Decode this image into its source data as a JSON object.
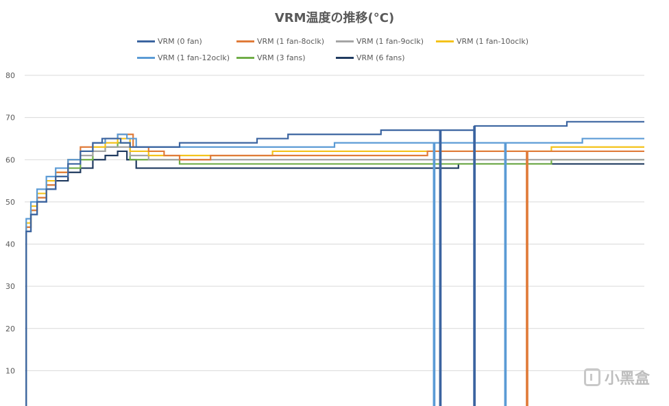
{
  "chart_data": {
    "type": "line",
    "title": "VRM温度の推移(°C)",
    "xlabel": "",
    "ylabel": "",
    "ylim": [
      0,
      80
    ],
    "yticks": [
      10,
      20,
      30,
      40,
      50,
      60,
      70,
      80
    ],
    "grid": true,
    "legend_position": "top",
    "series": [
      {
        "name": "VRM (0 fan)",
        "color": "#3b64a0",
        "points": [
          [
            0,
            0
          ],
          [
            0.5,
            43
          ],
          [
            2,
            47
          ],
          [
            4,
            50
          ],
          [
            7,
            53
          ],
          [
            10,
            56
          ],
          [
            14,
            59
          ],
          [
            18,
            62
          ],
          [
            22,
            64
          ],
          [
            25,
            65
          ],
          [
            29,
            65
          ],
          [
            31,
            64
          ],
          [
            34,
            63
          ],
          [
            40,
            63
          ],
          [
            45,
            63
          ],
          [
            50,
            64
          ],
          [
            56,
            64
          ],
          [
            62,
            64
          ],
          [
            66,
            64
          ],
          [
            70,
            64
          ],
          [
            75,
            65
          ],
          [
            80,
            65
          ],
          [
            85,
            66
          ],
          [
            90,
            66
          ],
          [
            95,
            66
          ],
          [
            100,
            66
          ],
          [
            105,
            66
          ],
          [
            110,
            66
          ],
          [
            115,
            67
          ],
          [
            120,
            67
          ],
          [
            125,
            67
          ],
          [
            130,
            67
          ],
          [
            135,
            67
          ],
          [
            140,
            67
          ],
          [
            145,
            68
          ],
          [
            150,
            68
          ],
          [
            155,
            68
          ],
          [
            160,
            68
          ],
          [
            165,
            68
          ],
          [
            170,
            68
          ],
          [
            175,
            69
          ],
          [
            180,
            69
          ],
          [
            185,
            69
          ],
          [
            190,
            69
          ],
          [
            195,
            69
          ],
          [
            200,
            69
          ]
        ],
        "dropouts": [
          [
            134,
            67
          ],
          [
            145,
            68
          ]
        ]
      },
      {
        "name": "VRM (1 fan-8oclk)",
        "color": "#e07b39",
        "points": [
          [
            0,
            0
          ],
          [
            0.5,
            44
          ],
          [
            2,
            48
          ],
          [
            4,
            51
          ],
          [
            7,
            54
          ],
          [
            10,
            57
          ],
          [
            14,
            60
          ],
          [
            18,
            63
          ],
          [
            22,
            64
          ],
          [
            26,
            65
          ],
          [
            30,
            66
          ],
          [
            33,
            66
          ],
          [
            35,
            63
          ],
          [
            40,
            62
          ],
          [
            45,
            61
          ],
          [
            50,
            60
          ],
          [
            55,
            60
          ],
          [
            60,
            61
          ],
          [
            70,
            61
          ],
          [
            80,
            61
          ],
          [
            90,
            61
          ],
          [
            100,
            61
          ],
          [
            110,
            61
          ],
          [
            120,
            61
          ],
          [
            130,
            62
          ],
          [
            140,
            62
          ],
          [
            150,
            62
          ],
          [
            160,
            62
          ],
          [
            170,
            62
          ],
          [
            180,
            62
          ],
          [
            190,
            62
          ],
          [
            200,
            62
          ]
        ],
        "dropouts": [
          [
            162,
            62
          ]
        ]
      },
      {
        "name": "VRM (1 fan-9oclk)",
        "color": "#a5a5a5",
        "points": [
          [
            0,
            0
          ],
          [
            0.5,
            44
          ],
          [
            2,
            48
          ],
          [
            4,
            51
          ],
          [
            7,
            54
          ],
          [
            10,
            56
          ],
          [
            14,
            59
          ],
          [
            18,
            61
          ],
          [
            22,
            62
          ],
          [
            26,
            63
          ],
          [
            30,
            63
          ],
          [
            34,
            61
          ],
          [
            40,
            60
          ],
          [
            50,
            60
          ],
          [
            60,
            60
          ],
          [
            70,
            60
          ],
          [
            80,
            60
          ],
          [
            90,
            60
          ],
          [
            100,
            60
          ],
          [
            110,
            60
          ],
          [
            120,
            60
          ],
          [
            130,
            60
          ],
          [
            140,
            60
          ],
          [
            150,
            60
          ],
          [
            160,
            60
          ],
          [
            170,
            60
          ],
          [
            180,
            60
          ],
          [
            190,
            60
          ],
          [
            200,
            60
          ]
        ],
        "dropouts": []
      },
      {
        "name": "VRM (1 fan-10oclk)",
        "color": "#f4c21a",
        "points": [
          [
            0,
            0
          ],
          [
            0.5,
            45
          ],
          [
            2,
            49
          ],
          [
            4,
            52
          ],
          [
            7,
            55
          ],
          [
            10,
            57
          ],
          [
            14,
            60
          ],
          [
            18,
            62
          ],
          [
            22,
            63
          ],
          [
            26,
            64
          ],
          [
            30,
            65
          ],
          [
            34,
            62
          ],
          [
            40,
            61
          ],
          [
            50,
            61
          ],
          [
            60,
            61
          ],
          [
            70,
            61
          ],
          [
            80,
            62
          ],
          [
            90,
            62
          ],
          [
            100,
            62
          ],
          [
            110,
            62
          ],
          [
            120,
            62
          ],
          [
            130,
            62
          ],
          [
            140,
            62
          ],
          [
            150,
            62
          ],
          [
            160,
            62
          ],
          [
            170,
            63
          ],
          [
            180,
            63
          ],
          [
            190,
            63
          ],
          [
            200,
            63
          ]
        ],
        "dropouts": []
      },
      {
        "name": "VRM (1 fan-12oclk)",
        "color": "#5b9bd5",
        "points": [
          [
            0,
            0
          ],
          [
            0.5,
            46
          ],
          [
            2,
            50
          ],
          [
            4,
            53
          ],
          [
            7,
            56
          ],
          [
            10,
            58
          ],
          [
            14,
            60
          ],
          [
            18,
            62
          ],
          [
            22,
            64
          ],
          [
            26,
            65
          ],
          [
            30,
            66
          ],
          [
            33,
            65
          ],
          [
            36,
            63
          ],
          [
            40,
            63
          ],
          [
            50,
            63
          ],
          [
            60,
            63
          ],
          [
            70,
            63
          ],
          [
            80,
            63
          ],
          [
            90,
            63
          ],
          [
            100,
            64
          ],
          [
            110,
            64
          ],
          [
            120,
            64
          ],
          [
            130,
            64
          ],
          [
            140,
            64
          ],
          [
            150,
            64
          ],
          [
            160,
            64
          ],
          [
            170,
            64
          ],
          [
            180,
            65
          ],
          [
            190,
            65
          ],
          [
            200,
            65
          ]
        ],
        "dropouts": [
          [
            132,
            64
          ],
          [
            155,
            64
          ]
        ]
      },
      {
        "name": "VRM (3 fans)",
        "color": "#70ad47",
        "points": [
          [
            0,
            0
          ],
          [
            0.5,
            44
          ],
          [
            2,
            48
          ],
          [
            4,
            51
          ],
          [
            7,
            54
          ],
          [
            10,
            56
          ],
          [
            14,
            58
          ],
          [
            18,
            60
          ],
          [
            22,
            62
          ],
          [
            26,
            63
          ],
          [
            30,
            64
          ],
          [
            34,
            60
          ],
          [
            40,
            60
          ],
          [
            50,
            59
          ],
          [
            60,
            59
          ],
          [
            70,
            59
          ],
          [
            80,
            59
          ],
          [
            90,
            59
          ],
          [
            100,
            59
          ],
          [
            110,
            59
          ],
          [
            120,
            59
          ],
          [
            130,
            59
          ],
          [
            140,
            59
          ],
          [
            150,
            59
          ],
          [
            160,
            59
          ],
          [
            170,
            60
          ],
          [
            180,
            60
          ],
          [
            190,
            60
          ],
          [
            200,
            60
          ]
        ],
        "dropouts": []
      },
      {
        "name": "VRM (6 fans)",
        "color": "#1f3a5f",
        "points": [
          [
            0,
            0
          ],
          [
            0.5,
            43
          ],
          [
            2,
            47
          ],
          [
            4,
            50
          ],
          [
            7,
            53
          ],
          [
            10,
            55
          ],
          [
            14,
            57
          ],
          [
            18,
            58
          ],
          [
            22,
            60
          ],
          [
            26,
            61
          ],
          [
            30,
            62
          ],
          [
            33,
            60
          ],
          [
            36,
            58
          ],
          [
            40,
            58
          ],
          [
            50,
            58
          ],
          [
            60,
            58
          ],
          [
            70,
            58
          ],
          [
            80,
            58
          ],
          [
            90,
            58
          ],
          [
            100,
            58
          ],
          [
            110,
            58
          ],
          [
            120,
            58
          ],
          [
            130,
            58
          ],
          [
            140,
            59
          ],
          [
            150,
            59
          ],
          [
            160,
            59
          ],
          [
            170,
            59
          ],
          [
            180,
            59
          ],
          [
            190,
            59
          ],
          [
            200,
            59
          ]
        ],
        "dropouts": []
      }
    ]
  },
  "watermark": {
    "text": "小黑盒"
  }
}
